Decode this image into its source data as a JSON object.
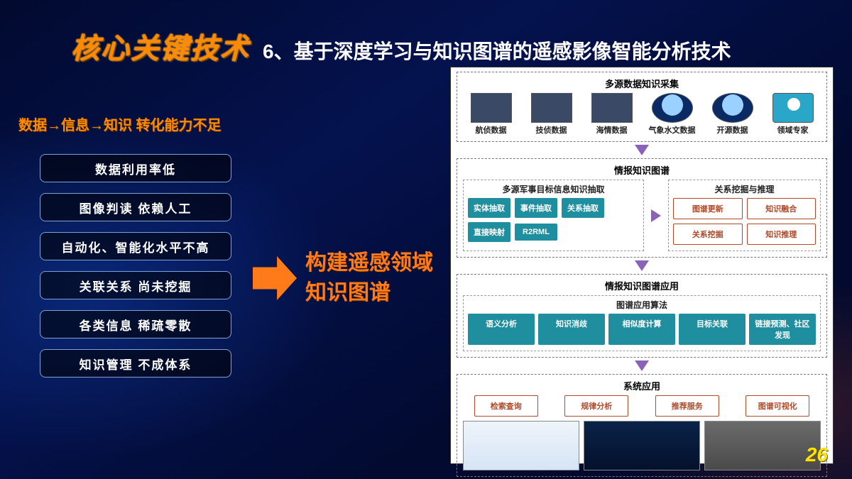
{
  "header": {
    "title_main": "核心关键技术",
    "title_sub": "6、基于深度学习与知识图谱的遥感影像智能分析技术"
  },
  "left": {
    "heading": "数据→信息→知识   转化能力不足",
    "pills": [
      "数据利用率低",
      "图像判读 依赖人工",
      "自动化、智能化水平不高",
      "关联关系   尚未挖掘",
      "各类信息   稀疏零散",
      "知识管理   不成体系"
    ]
  },
  "goal": {
    "line1": "构建遥感领域",
    "line2": "知识图谱"
  },
  "diagram": {
    "sec1": {
      "title": "多源数据知识采集",
      "sources": [
        "航侦数据",
        "技侦数据",
        "海情数据",
        "气象水文数据",
        "开源数据",
        "领域专家"
      ]
    },
    "sec2": {
      "title": "情报知识图谱",
      "left": {
        "title": "多源军事目标信息知识抽取",
        "tiles": [
          "实体抽取",
          "事件抽取",
          "关系抽取",
          "直接映射",
          "R2RML"
        ]
      },
      "right": {
        "title": "关系挖掘与推理",
        "tiles": [
          "图谱更新",
          "知识融合",
          "关系挖掘",
          "知识推理"
        ]
      }
    },
    "sec3": {
      "title": "情报知识图谱应用",
      "sub": "图谱应用算法",
      "tiles": [
        "语义分析",
        "知识消歧",
        "相似度计算",
        "目标关联",
        "链接预测、社区发现"
      ]
    },
    "sec4": {
      "title": "系统应用",
      "tiles": [
        "检索查询",
        "规律分析",
        "推荐服务",
        "图谱可视化"
      ]
    }
  },
  "page_number": "26",
  "colors": {
    "accent_orange": "#ff8a00",
    "arrow_orange": "#ff7a18",
    "tile_teal": "#1f8e9e",
    "tile_outline": "#b04a28",
    "flow_arrow": "#8a63b8",
    "page_number": "#ffe200",
    "panel_bg": "#ffffff"
  }
}
